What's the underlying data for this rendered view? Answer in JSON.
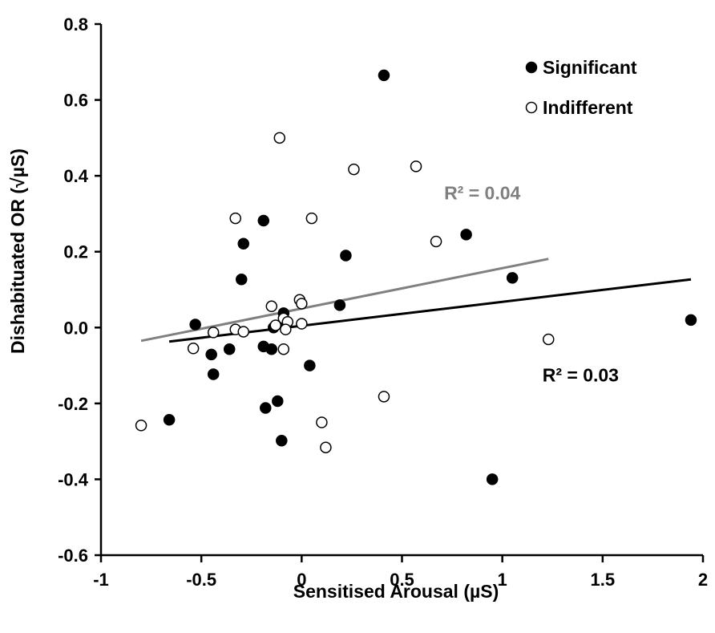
{
  "chart_data": {
    "type": "scatter",
    "xlabel": "Sensitised Arousal (µS)",
    "ylabel": "Dishabituated OR (√µS)",
    "xlim": [
      -1,
      2
    ],
    "ylim": [
      -0.6,
      0.8
    ],
    "x_ticks": [
      {
        "value": -1,
        "label": "-1"
      },
      {
        "value": -0.5,
        "label": "-0.5"
      },
      {
        "value": 0,
        "label": "0"
      },
      {
        "value": 0.5,
        "label": "0.5"
      },
      {
        "value": 1,
        "label": "1"
      },
      {
        "value": 1.5,
        "label": "1.5"
      },
      {
        "value": 2,
        "label": "2"
      }
    ],
    "y_ticks": [
      {
        "value": 0.8,
        "label": "0.8"
      },
      {
        "value": 0.6,
        "label": "0.6"
      },
      {
        "value": 0.4,
        "label": "0.4"
      },
      {
        "value": 0.2,
        "label": "0.2"
      },
      {
        "value": 0.0,
        "label": "0.0"
      },
      {
        "value": -0.2,
        "label": "-0.2"
      },
      {
        "value": -0.4,
        "label": "-0.4"
      },
      {
        "value": -0.6,
        "label": "-0.6"
      }
    ],
    "grid": false,
    "legend_position": "top-right",
    "series": [
      {
        "name": "Significant",
        "marker": "filled-circle",
        "color": "#000000",
        "points": [
          [
            0.41,
            0.665
          ],
          [
            -0.19,
            0.282
          ],
          [
            -0.29,
            0.221
          ],
          [
            0.82,
            0.245
          ],
          [
            0.22,
            0.19
          ],
          [
            -0.3,
            0.127
          ],
          [
            1.05,
            0.131
          ],
          [
            0.19,
            0.059
          ],
          [
            -0.53,
            0.008
          ],
          [
            -0.09,
            0.038
          ],
          [
            -0.08,
            0.013
          ],
          [
            -0.14,
            0.0
          ],
          [
            1.94,
            0.02
          ],
          [
            -0.45,
            -0.071
          ],
          [
            -0.36,
            -0.057
          ],
          [
            -0.19,
            -0.05
          ],
          [
            -0.15,
            -0.057
          ],
          [
            -0.44,
            -0.123
          ],
          [
            0.04,
            -0.1
          ],
          [
            -0.66,
            -0.243
          ],
          [
            -0.18,
            -0.212
          ],
          [
            -0.12,
            -0.194
          ],
          [
            -0.1,
            -0.298
          ],
          [
            0.95,
            -0.4
          ]
        ]
      },
      {
        "name": "Indifferent",
        "marker": "open-circle",
        "color": "#000000",
        "points": [
          [
            -0.11,
            0.5
          ],
          [
            0.26,
            0.417
          ],
          [
            0.57,
            0.425
          ],
          [
            -0.33,
            0.288
          ],
          [
            0.05,
            0.288
          ],
          [
            0.67,
            0.227
          ],
          [
            -0.01,
            0.073
          ],
          [
            0.0,
            0.063
          ],
          [
            -0.15,
            0.056
          ],
          [
            -0.09,
            0.024
          ],
          [
            -0.07,
            0.015
          ],
          [
            -0.13,
            0.006
          ],
          [
            -0.08,
            -0.005
          ],
          [
            0.0,
            0.01
          ],
          [
            -0.33,
            -0.005
          ],
          [
            -0.29,
            -0.011
          ],
          [
            -0.44,
            -0.013
          ],
          [
            -0.54,
            -0.055
          ],
          [
            -0.09,
            -0.057
          ],
          [
            1.23,
            -0.031
          ],
          [
            0.41,
            -0.182
          ],
          [
            0.1,
            -0.25
          ],
          [
            0.12,
            -0.316
          ],
          [
            -0.8,
            -0.258
          ]
        ]
      }
    ],
    "trendlines": [
      {
        "series": "Significant",
        "x": [
          -0.66,
          1.94
        ],
        "y": [
          -0.037,
          0.127
        ],
        "color": "#000000",
        "label": "R² = 0.03",
        "label_anchor": [
          1.2,
          -0.125
        ]
      },
      {
        "series": "Indifferent",
        "x": [
          -0.8,
          1.23
        ],
        "y": [
          -0.035,
          0.181
        ],
        "color": "#808080",
        "label": "R² = 0.04",
        "label_anchor": [
          0.71,
          0.355
        ]
      }
    ]
  }
}
